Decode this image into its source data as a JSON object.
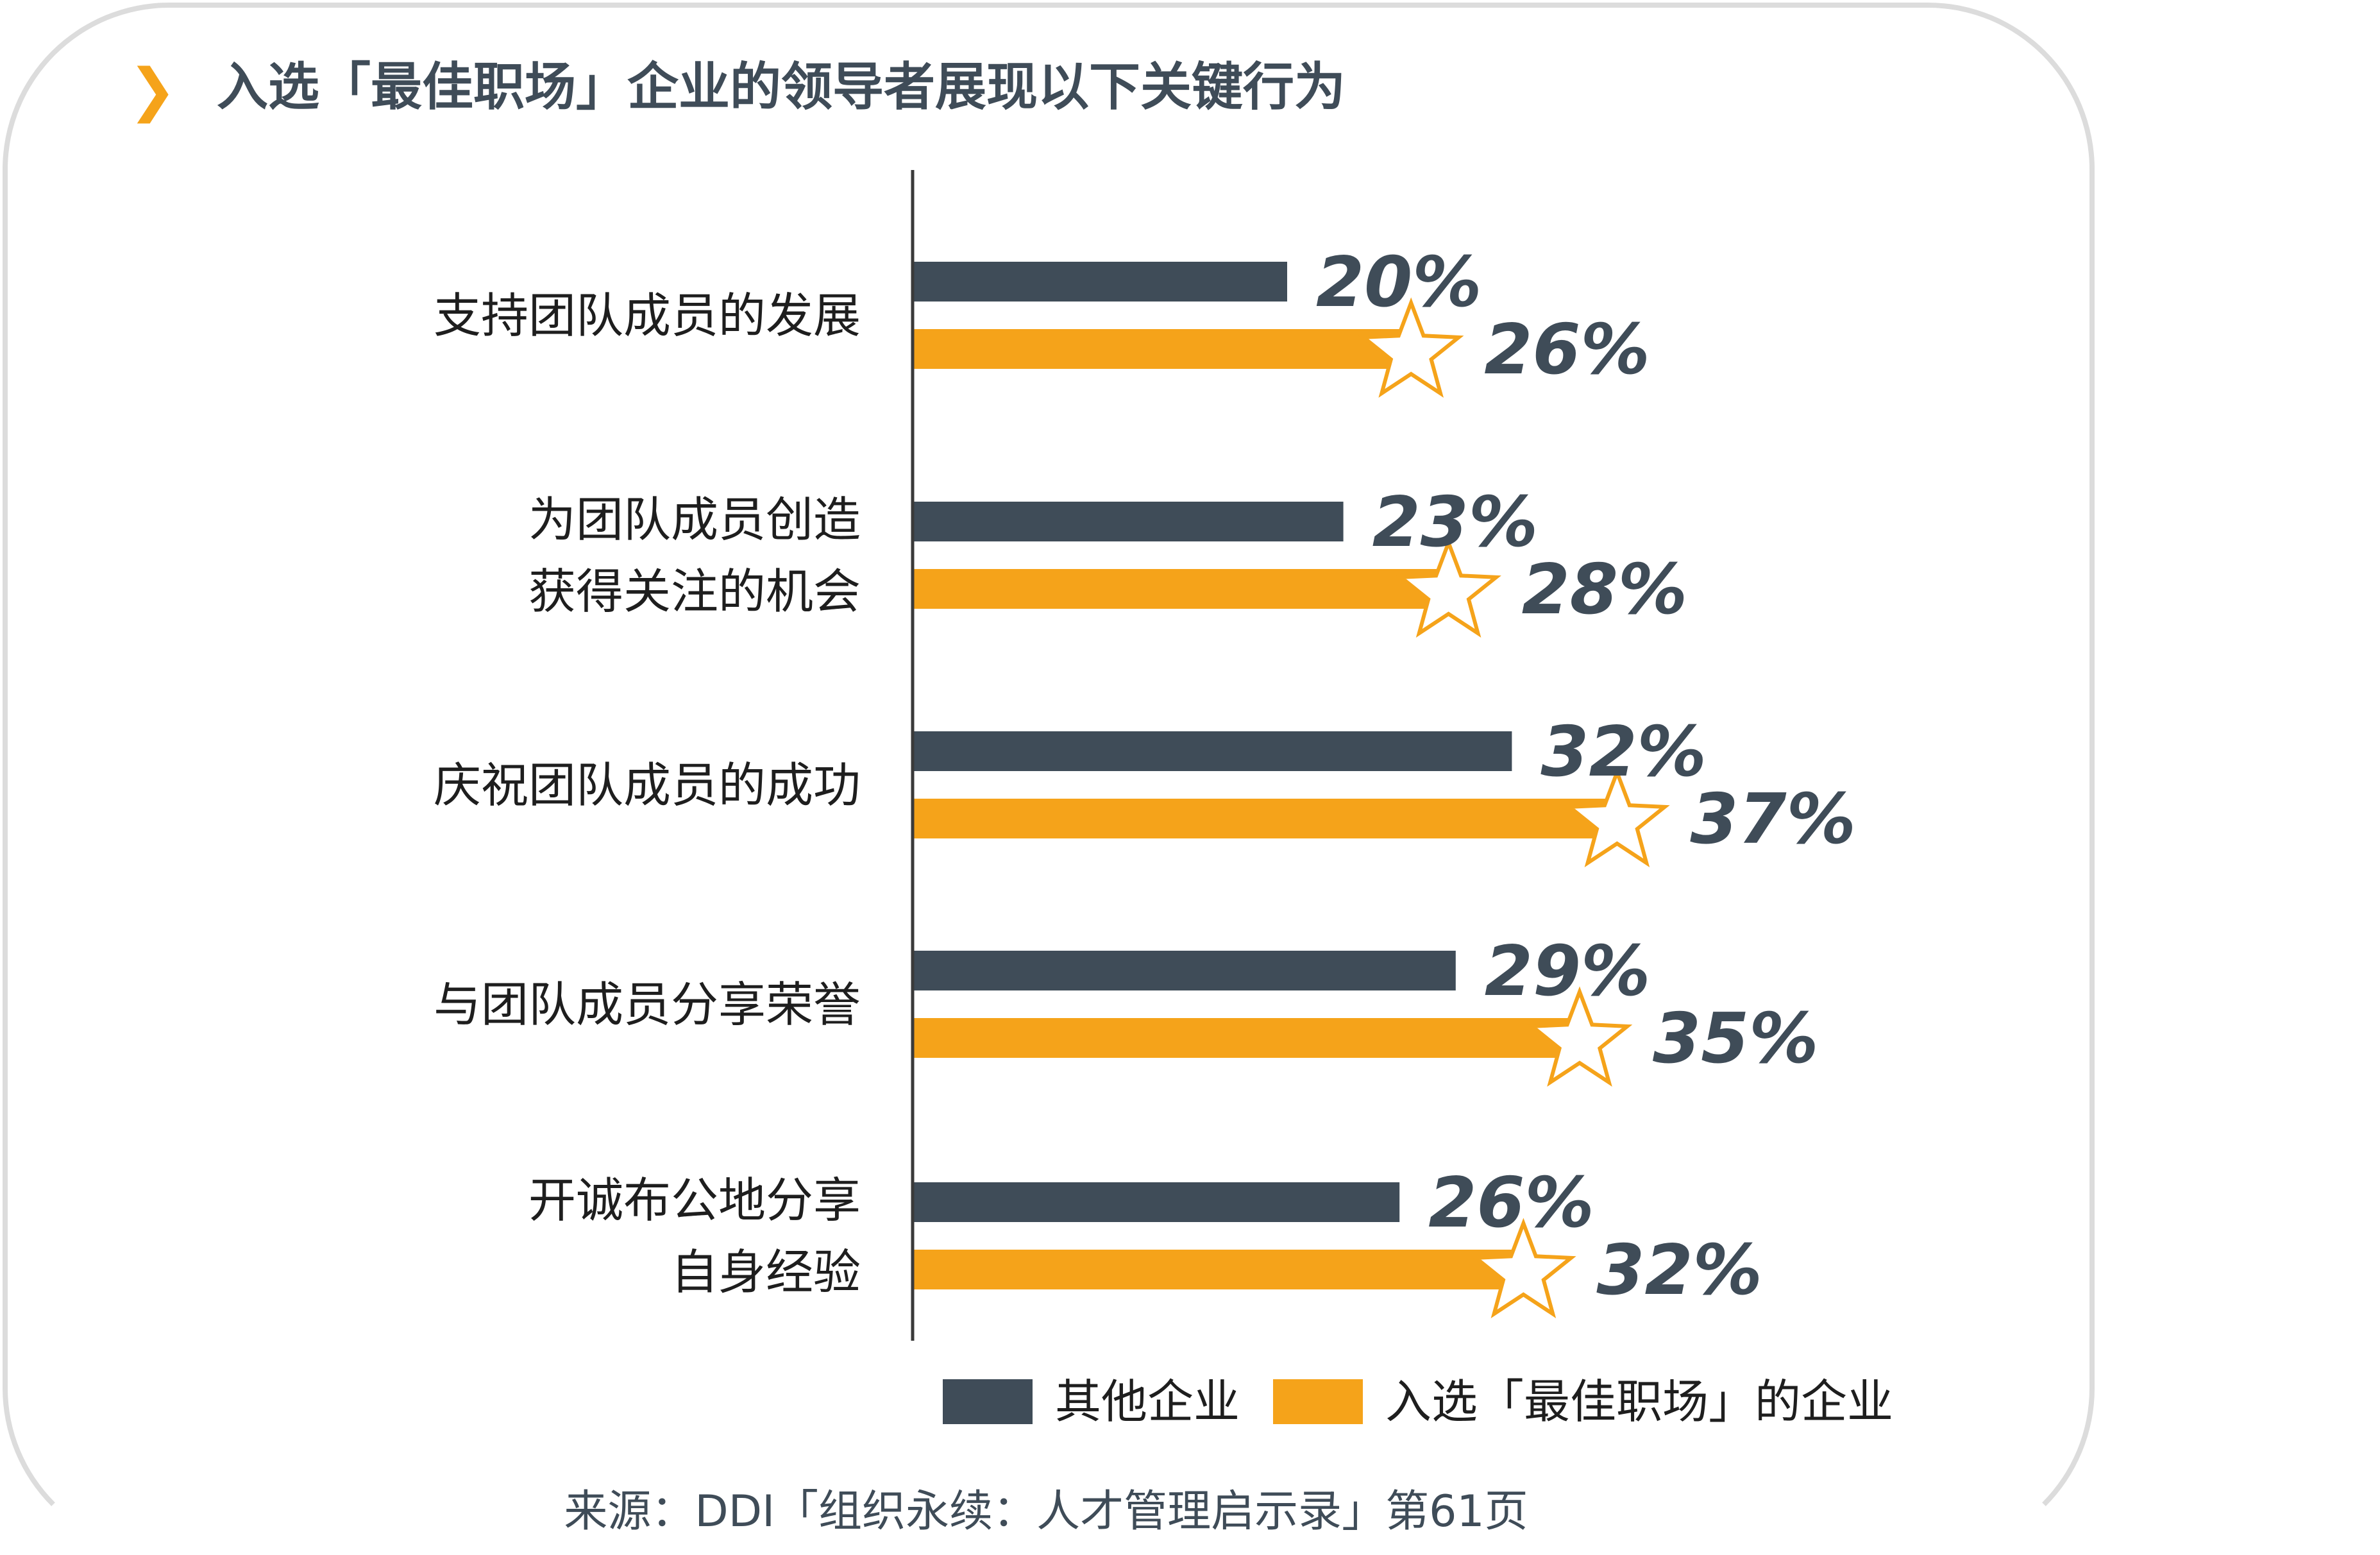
{
  "header": {
    "title": "入选「最佳职场」企业的领导者展现以下关键行为"
  },
  "footer": {
    "source": "来源：DDI「组织永续：人才管理启示录」第61页"
  },
  "colors": {
    "other": "#3f4c58",
    "best": "#f5a31a",
    "frame": "#dcdcdc"
  },
  "chart_data": {
    "type": "bar",
    "orientation": "horizontal",
    "title": "入选「最佳职场」企业的领导者展现以下关键行为",
    "categories": [
      [
        "支持团队成员的发展"
      ],
      [
        "为团队成员创造",
        "获得关注的机会"
      ],
      [
        "庆祝团队成员的成功"
      ],
      [
        "与团队成员分享荣誉"
      ],
      [
        "开诚布公地分享",
        "自身经验"
      ]
    ],
    "series": [
      {
        "name": "其他企业",
        "values": [
          20,
          23,
          32,
          29,
          26
        ],
        "labels": [
          "20%",
          "23%",
          "32%",
          "29%",
          "26%"
        ],
        "color": "#3f4c58"
      },
      {
        "name": "入选「最佳职场」的企业",
        "values": [
          26,
          28,
          37,
          35,
          32
        ],
        "labels": [
          "26%",
          "28%",
          "37%",
          "35%",
          "32%"
        ],
        "color": "#f5a31a"
      }
    ],
    "unit": "%",
    "legend": "bottom",
    "grid": false,
    "highlight_marker": "star"
  }
}
